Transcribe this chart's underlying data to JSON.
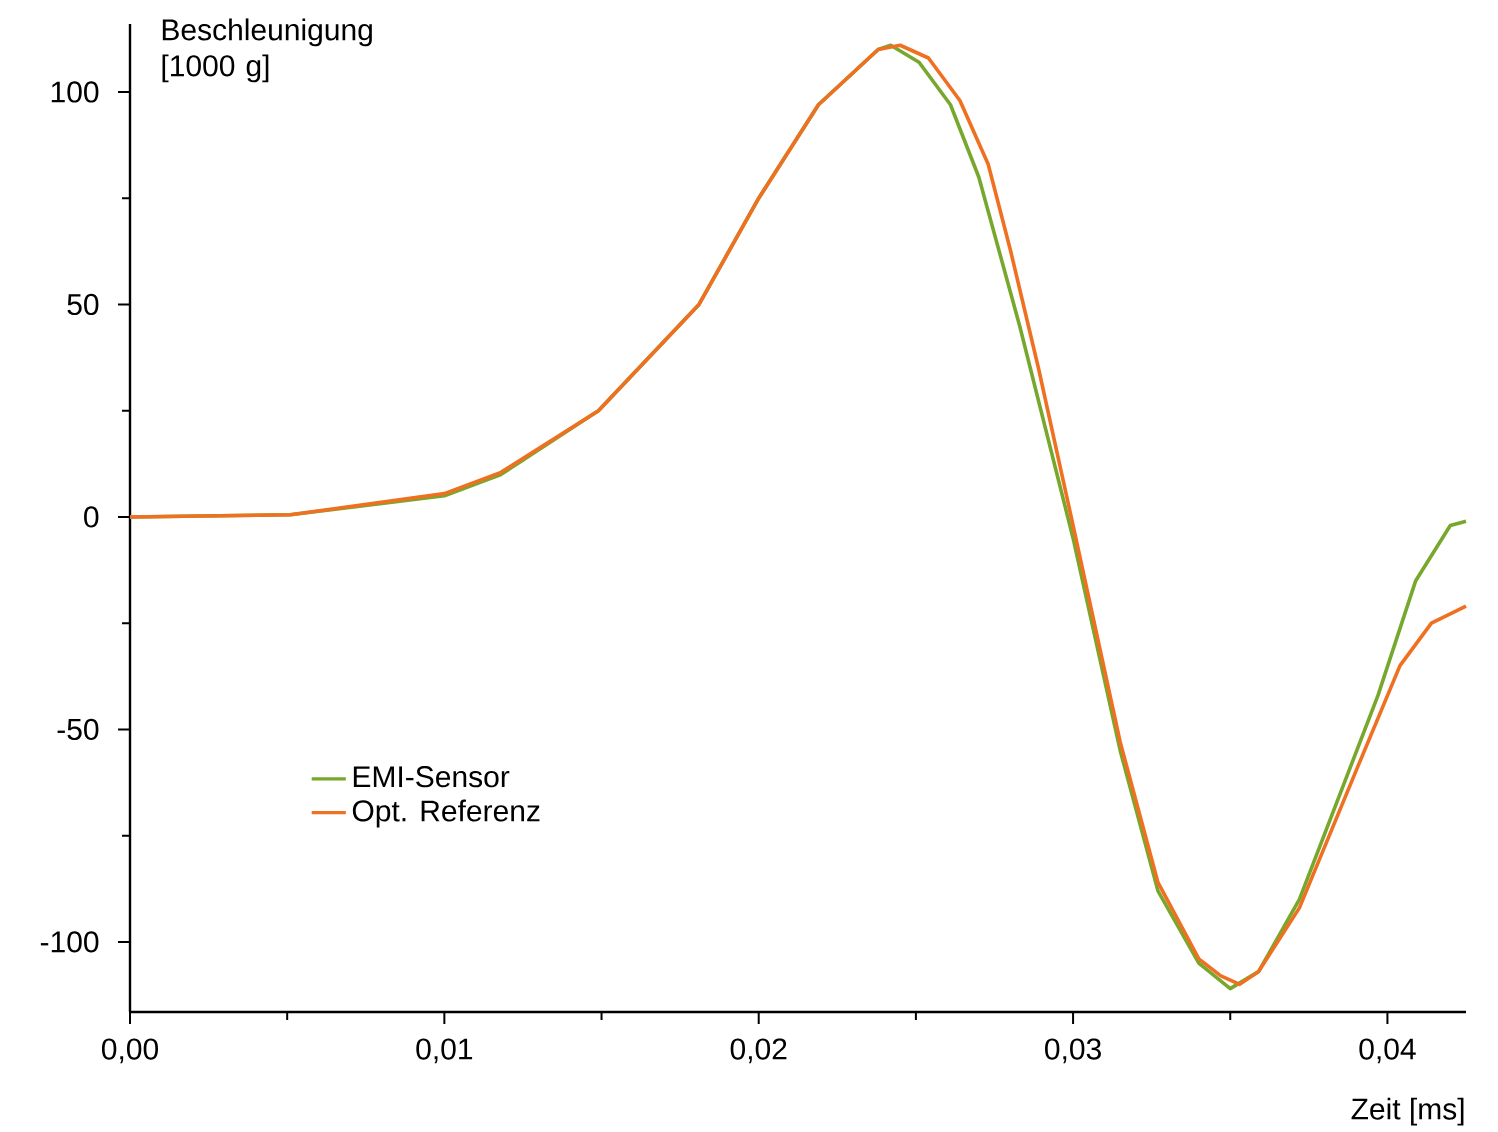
{
  "chart_data": {
    "type": "line",
    "xlabel": "Zeit [ms]",
    "ylabel": "Beschleunigung [1000 g]",
    "xlim": [
      0,
      0.0425
    ],
    "ylim": [
      -116.5,
      116
    ],
    "xticks": [
      {
        "value": 0,
        "label": "0,00"
      },
      {
        "value": 0.01,
        "label": "0,01"
      },
      {
        "value": 0.02,
        "label": "0,02"
      },
      {
        "value": 0.03,
        "label": "0,03"
      },
      {
        "value": 0.04,
        "label": "0,04"
      }
    ],
    "yticks": [
      -100,
      -50,
      0,
      50,
      100
    ],
    "grid": false,
    "legend": "bottom left",
    "marker": "none",
    "line_style": "solid",
    "series": [
      {
        "name": "EMI-Sensor",
        "color": "#77a82d",
        "x": [
          0,
          0.0051,
          0.01,
          0.0118,
          0.0149,
          0.0181,
          0.02,
          0.0219,
          0.0238,
          0.0242,
          0.0251,
          0.0261,
          0.027,
          0.0283,
          0.03,
          0.0315,
          0.0327,
          0.034,
          0.035,
          0.0359,
          0.0372,
          0.0397,
          0.0409,
          0.042,
          0.0425
        ],
        "values": [
          0,
          0.5,
          5,
          10,
          25,
          50,
          75,
          97,
          110,
          111,
          107,
          97,
          80,
          45,
          -5,
          -55,
          -88,
          -105,
          -111,
          -107,
          -90,
          -42,
          -15,
          -2,
          -1
        ]
      },
      {
        "name": "Opt. Referenz",
        "color": "#f07022",
        "x": [
          0,
          0.0051,
          0.01,
          0.0118,
          0.0149,
          0.0181,
          0.02,
          0.0219,
          0.0238,
          0.0245,
          0.0254,
          0.0264,
          0.0273,
          0.028,
          0.0289,
          0.03,
          0.0315,
          0.0327,
          0.034,
          0.0347,
          0.0353,
          0.0359,
          0.0372,
          0.0391,
          0.0404,
          0.0414,
          0.0425
        ],
        "values": [
          0,
          0.5,
          5.5,
          10.5,
          25,
          50,
          75,
          97,
          110,
          111,
          108,
          98,
          83,
          63,
          35,
          -2,
          -53,
          -86,
          -104,
          -108,
          -110,
          -107,
          -92,
          -58,
          -35,
          -25,
          -21
        ]
      }
    ]
  }
}
